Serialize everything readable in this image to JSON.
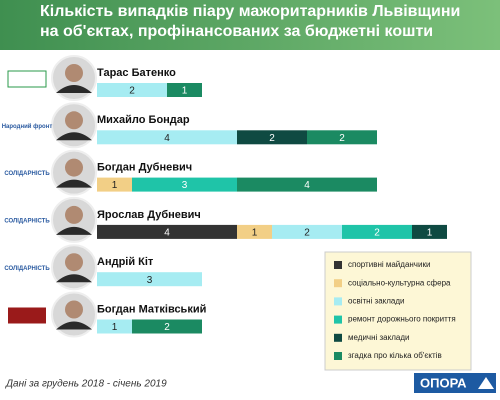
{
  "chart_data": {
    "type": "stacked-bar",
    "title": "Кількість випадків піару мажоритарників Львівщини на об'єктах, профінансованих за бюджетні кошти",
    "categories": [
      "Тарас Батенко",
      "Михайло Бондар",
      "Богдан Дубневич",
      "Ярослав Дубневич",
      "Андрій Кіт",
      "Богдан Матківський"
    ],
    "parties": [
      null,
      "Народний фронт",
      "СОЛІДАРНІСТЬ",
      "СОЛІДАРНІСТЬ",
      "СОЛІДАРНІСТЬ",
      null
    ],
    "series": [
      {
        "name": "спортивні майданчики",
        "color": "#333333",
        "values": [
          null,
          null,
          null,
          4,
          null,
          null
        ]
      },
      {
        "name": "соціально-культурна сфера",
        "color": "#f2cf86",
        "values": [
          null,
          null,
          1,
          1,
          null,
          null
        ]
      },
      {
        "name": "освітні заклади",
        "color": "#a6ecf2",
        "values": [
          2,
          4,
          null,
          2,
          3,
          1
        ]
      },
      {
        "name": "ремонт дорожнього покриття",
        "color": "#1fc4a8",
        "values": [
          null,
          null,
          3,
          2,
          null,
          null
        ]
      },
      {
        "name": "медичні заклади",
        "color": "#0f4a42",
        "values": [
          null,
          2,
          null,
          1,
          null,
          null
        ]
      },
      {
        "name": "згадка про кілька об'єктів",
        "color": "#1b8a62",
        "values": [
          1,
          2,
          4,
          null,
          null,
          2
        ]
      }
    ],
    "source": "Дані за грудень 2018 - січень 2019",
    "logo": "ОПОРА"
  }
}
